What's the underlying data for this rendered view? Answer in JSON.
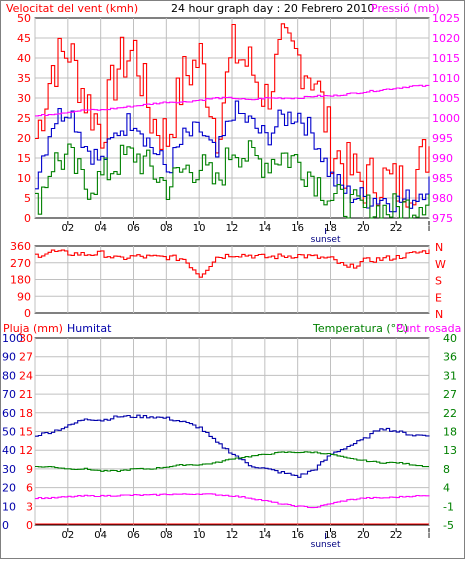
{
  "colors": {
    "wind": "#ff0000",
    "wind_avg": "#0000cc",
    "wind_min": "#008000",
    "pressure": "#ff00ff",
    "humidity": "#0000aa",
    "temperature": "#008000",
    "dewpoint": "#ff00ff",
    "rain": "#ff0000",
    "grid": "#c0c0c0",
    "axis": "#000000",
    "sunset": "#000080"
  },
  "sunset_label": "sunset",
  "x_ticks": [
    "02",
    "04",
    "06",
    "08",
    "10",
    "12",
    "14",
    "16",
    "18",
    "20",
    "22",
    "i"
  ],
  "chart_data": [
    {
      "type": "line",
      "title": "24 hour graph day : 20 Febrero 2010",
      "ylabel_left": "Velocitat del vent (kmh)",
      "ylabel_right": "Pressió (mb)",
      "yticks_left": [
        "0",
        "5",
        "10",
        "15",
        "20",
        "25",
        "30",
        "35",
        "40",
        "45",
        "50"
      ],
      "yticks_right": [
        "975",
        "980",
        "985",
        "990",
        "995",
        "1000",
        "1005",
        "1010",
        "1015",
        "1020",
        "1025"
      ],
      "ylim_left": [
        0,
        50
      ],
      "ylim_right": [
        975,
        1025
      ],
      "x_hours": [
        0,
        1,
        2,
        3,
        4,
        5,
        6,
        7,
        8,
        9,
        10,
        11,
        12,
        13,
        14,
        15,
        16,
        17,
        18,
        19,
        20,
        21,
        22,
        23,
        24
      ],
      "series": [
        {
          "key": "gust",
          "values": [
            20,
            38,
            42,
            30,
            22,
            38,
            42,
            25,
            20,
            35,
            40,
            22,
            42,
            38,
            30,
            42,
            40,
            35,
            18,
            12,
            9,
            10,
            8,
            10,
            18
          ]
        },
        {
          "key": "avg",
          "values": [
            10,
            24,
            28,
            18,
            14,
            22,
            25,
            18,
            12,
            20,
            22,
            15,
            27,
            24,
            20,
            25,
            26,
            20,
            10,
            6,
            5,
            5,
            4,
            5,
            9
          ]
        },
        {
          "key": "min",
          "values": [
            3,
            14,
            15,
            8,
            10,
            14,
            16,
            12,
            8,
            12,
            13,
            8,
            18,
            15,
            14,
            16,
            14,
            10,
            5,
            3,
            2,
            2,
            2,
            3,
            6
          ]
        },
        {
          "key": "pressure",
          "values": [
            1000.5,
            1001,
            1001.5,
            1002,
            1002,
            1002.5,
            1003,
            1003.5,
            1004,
            1004,
            1004.5,
            1005,
            1005,
            1004.5,
            1005,
            1005,
            1005,
            1005.5,
            1005.5,
            1006,
            1006.5,
            1007,
            1007.5,
            1008,
            1008
          ]
        }
      ]
    },
    {
      "type": "line",
      "ylabel_right": "N W S E N",
      "compass_labels": [
        "N",
        "W",
        "S",
        "E",
        "N"
      ],
      "yticks_left": [
        "0",
        "90",
        "180",
        "270",
        "360"
      ],
      "ylim_left": [
        0,
        360
      ],
      "x_hours": [
        0,
        1,
        2,
        3,
        4,
        5,
        6,
        7,
        8,
        9,
        10,
        11,
        12,
        13,
        14,
        15,
        16,
        17,
        18,
        19,
        20,
        21,
        22,
        23,
        24
      ],
      "series": [
        {
          "key": "direction",
          "values": [
            310,
            330,
            320,
            315,
            320,
            290,
            305,
            300,
            300,
            290,
            200,
            300,
            315,
            310,
            300,
            305,
            310,
            300,
            290,
            240,
            280,
            290,
            300,
            320,
            335
          ]
        }
      ]
    },
    {
      "type": "line",
      "ylabel_rain": "Pluja (mm)",
      "ylabel_humidity": "Humitat",
      "ylabel_right": "Temperatura (°C)",
      "ylabel_dew": "Punt rosada",
      "yticks_rain": [
        "0",
        "3",
        "6",
        "9",
        "12",
        "15",
        "18",
        "21",
        "24",
        "27",
        "30"
      ],
      "yticks_humidity": [
        "0",
        "10",
        "20",
        "30",
        "40",
        "50",
        "60",
        "70",
        "80",
        "90",
        "100"
      ],
      "yticks_right": [
        "-5",
        "-1",
        "4",
        "8",
        "13",
        "18",
        "22",
        "27",
        "31",
        "36",
        "40"
      ],
      "ylim_humidity": [
        0,
        100
      ],
      "ylim_temp": [
        -5,
        40
      ],
      "x_hours": [
        0,
        1,
        2,
        3,
        4,
        5,
        6,
        7,
        8,
        9,
        10,
        11,
        12,
        13,
        14,
        15,
        16,
        17,
        18,
        19,
        20,
        21,
        22,
        23,
        24
      ],
      "series": [
        {
          "key": "humidity",
          "values": [
            48,
            50,
            53,
            57,
            56,
            58,
            58,
            58,
            57,
            55,
            52,
            44,
            38,
            32,
            30,
            28,
            26,
            30,
            38,
            42,
            46,
            52,
            50,
            48,
            48
          ]
        },
        {
          "key": "temperature",
          "values": [
            9,
            9,
            8.5,
            8.5,
            8,
            8,
            8.5,
            8.5,
            9,
            9.5,
            9.5,
            10,
            11,
            11.5,
            12,
            12.5,
            12.5,
            12.5,
            12,
            11,
            10.5,
            10,
            10,
            9.5,
            9
          ]
        },
        {
          "key": "dewpoint",
          "values": [
            1.5,
            1.5,
            1.8,
            2,
            2,
            2.1,
            2.2,
            2.2,
            2.4,
            2.4,
            2.5,
            2.3,
            2,
            1.5,
            0.8,
            0,
            -0.5,
            -0.8,
            0.2,
            1,
            1.5,
            1.5,
            1.7,
            2,
            2
          ]
        },
        {
          "key": "rain",
          "values": [
            0,
            0,
            0,
            0,
            0,
            0,
            0,
            0,
            0,
            0,
            0,
            0,
            0,
            0,
            0,
            0,
            0,
            0,
            0,
            0,
            0,
            0,
            0,
            0,
            0
          ]
        }
      ]
    }
  ]
}
